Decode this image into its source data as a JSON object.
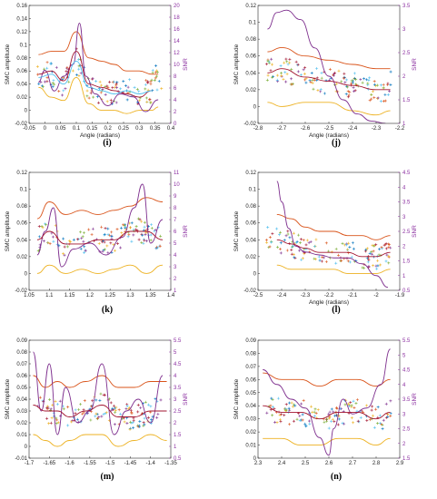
{
  "chart_data": [
    {
      "id": "i",
      "type": "scatter",
      "caption": "(i)",
      "xlabel": "Angle (radians)",
      "ylabel": "SMC amplitude",
      "y2label": "SNR",
      "xlim": [
        -0.05,
        0.4
      ],
      "ylim": [
        -0.02,
        0.16
      ],
      "y2lim": [
        0,
        20
      ],
      "xticks": [
        "-0.05",
        "0",
        "0.05",
        "0.1",
        "0.15",
        "0.2",
        "0.25",
        "0.3",
        "0.35",
        "0.4"
      ],
      "xtick_values": [
        -0.05,
        0,
        0.05,
        0.1,
        0.15,
        0.2,
        0.25,
        0.3,
        0.35,
        0.4
      ],
      "yticks": [
        "-0.02",
        "0",
        "0.02",
        "0.04",
        "0.06",
        "0.08",
        "0.1",
        "0.12",
        "0.14",
        "0.16"
      ],
      "ytick_values": [
        -0.02,
        0,
        0.02,
        0.04,
        0.06,
        0.08,
        0.1,
        0.12,
        0.14,
        0.16
      ],
      "y2ticks": [
        "0",
        "2",
        "4",
        "6",
        "8",
        "10",
        "12",
        "14",
        "16",
        "18",
        "20"
      ],
      "y2tick_values": [
        0,
        2,
        4,
        6,
        8,
        10,
        12,
        14,
        16,
        18,
        20
      ],
      "series": [
        {
          "color": "#d95319",
          "x": [
            -0.02,
            0.02,
            0.06,
            0.1,
            0.14,
            0.18,
            0.22,
            0.26,
            0.3,
            0.34,
            0.36
          ],
          "y": [
            0.085,
            0.09,
            0.09,
            0.12,
            0.08,
            0.075,
            0.07,
            0.06,
            0.06,
            0.055,
            0.055
          ]
        },
        {
          "color": "#edb120",
          "x": [
            -0.02,
            0.02,
            0.06,
            0.1,
            0.14,
            0.18,
            0.22,
            0.26,
            0.3,
            0.34,
            0.36
          ],
          "y": [
            0.035,
            0.02,
            0.015,
            0.05,
            0.01,
            0.0,
            0.0,
            -0.005,
            0.0,
            0.0,
            0.005
          ]
        },
        {
          "color": "#7e2f8e",
          "axis": "y2",
          "x": [
            -0.02,
            0.0,
            0.03,
            0.06,
            0.09,
            0.11,
            0.13,
            0.16,
            0.2,
            0.24,
            0.28,
            0.32,
            0.36
          ],
          "y": [
            7,
            9,
            5.5,
            8,
            10,
            17,
            8,
            5,
            3,
            5,
            4.5,
            2,
            4
          ]
        },
        {
          "color": "#a2142f",
          "x": [
            -0.02,
            0.02,
            0.06,
            0.1,
            0.14,
            0.18,
            0.22,
            0.26,
            0.3,
            0.34
          ],
          "y": [
            0.055,
            0.06,
            0.045,
            0.09,
            0.04,
            0.035,
            0.03,
            0.025,
            0.02,
            0.03
          ]
        },
        {
          "color": "#4dbeee",
          "x": [
            -0.02,
            0.02,
            0.06,
            0.1,
            0.14,
            0.18,
            0.22,
            0.26,
            0.3,
            0.34
          ],
          "y": [
            0.05,
            0.055,
            0.04,
            0.075,
            0.035,
            0.03,
            0.025,
            0.03,
            0.025,
            0.03
          ]
        }
      ]
    },
    {
      "id": "j",
      "type": "scatter",
      "caption": "(j)",
      "xlabel": "Angle (radians)",
      "ylabel": "SMC amplitude",
      "y2label": "SNR",
      "xlim": [
        -2.8,
        -2.2
      ],
      "ylim": [
        -0.02,
        0.12
      ],
      "y2lim": [
        1,
        3.5
      ],
      "xticks": [
        "-2.8",
        "-2.7",
        "-2.6",
        "-2.5",
        "-2.4",
        "-2.3",
        "-2.2"
      ],
      "xtick_values": [
        -2.8,
        -2.7,
        -2.6,
        -2.5,
        -2.4,
        -2.3,
        -2.2
      ],
      "yticks": [
        "-0.02",
        "0",
        "0.02",
        "0.04",
        "0.06",
        "0.08",
        "0.1",
        "0.12"
      ],
      "ytick_values": [
        -0.02,
        0,
        0.02,
        0.04,
        0.06,
        0.08,
        0.1,
        0.12
      ],
      "y2ticks": [
        "1",
        "1.5",
        "2",
        "2.5",
        "3",
        "3.5"
      ],
      "y2tick_values": [
        1,
        1.5,
        2,
        2.5,
        3,
        3.5
      ],
      "series": [
        {
          "color": "#d95319",
          "x": [
            -2.76,
            -2.7,
            -2.6,
            -2.5,
            -2.4,
            -2.3,
            -2.24
          ],
          "y": [
            0.065,
            0.07,
            0.06,
            0.055,
            0.05,
            0.045,
            0.045
          ]
        },
        {
          "color": "#edb120",
          "x": [
            -2.76,
            -2.7,
            -2.6,
            -2.5,
            -2.4,
            -2.3,
            -2.24
          ],
          "y": [
            0.005,
            0.0,
            0.005,
            0.005,
            -0.005,
            -0.01,
            -0.005
          ]
        },
        {
          "color": "#7e2f8e",
          "axis": "y2",
          "x": [
            -2.76,
            -2.72,
            -2.68,
            -2.62,
            -2.56,
            -2.5,
            -2.44,
            -2.38,
            -2.32,
            -2.26
          ],
          "y": [
            3.0,
            3.35,
            3.4,
            3.2,
            2.6,
            2.0,
            1.5,
            1.2,
            1.05,
            1.0
          ]
        },
        {
          "color": "#a2142f",
          "x": [
            -2.76,
            -2.7,
            -2.6,
            -2.5,
            -2.4,
            -2.3,
            -2.24
          ],
          "y": [
            0.04,
            0.045,
            0.035,
            0.03,
            0.025,
            0.02,
            0.02
          ]
        }
      ]
    },
    {
      "id": "k",
      "type": "scatter",
      "caption": "(k)",
      "xlabel": "",
      "ylabel": "SMC amplitude",
      "y2label": "SNR",
      "xlim": [
        1.05,
        1.4
      ],
      "ylim": [
        -0.02,
        0.12
      ],
      "y2lim": [
        1,
        11
      ],
      "xticks": [
        "1.05",
        "1.1",
        "1.15",
        "1.2",
        "1.25",
        "1.3",
        "1.35",
        "1.4"
      ],
      "xtick_values": [
        1.05,
        1.1,
        1.15,
        1.2,
        1.25,
        1.3,
        1.35,
        1.4
      ],
      "yticks": [
        "-0.02",
        "0",
        "0.02",
        "0.04",
        "0.06",
        "0.08",
        "0.1",
        "0.12"
      ],
      "ytick_values": [
        -0.02,
        0,
        0.02,
        0.04,
        0.06,
        0.08,
        0.1,
        0.12
      ],
      "y2ticks": [
        "1",
        "2",
        "3",
        "4",
        "5",
        "6",
        "7",
        "8",
        "9",
        "10",
        "11"
      ],
      "y2tick_values": [
        1,
        2,
        3,
        4,
        5,
        6,
        7,
        8,
        9,
        10,
        11
      ],
      "series": [
        {
          "color": "#d95319",
          "x": [
            1.07,
            1.1,
            1.14,
            1.18,
            1.22,
            1.26,
            1.3,
            1.34,
            1.38
          ],
          "y": [
            0.065,
            0.085,
            0.07,
            0.075,
            0.07,
            0.075,
            0.08,
            0.09,
            0.085
          ]
        },
        {
          "color": "#edb120",
          "x": [
            1.07,
            1.1,
            1.14,
            1.18,
            1.22,
            1.26,
            1.3,
            1.34,
            1.38
          ],
          "y": [
            0.0,
            0.01,
            0.0,
            0.005,
            0.0,
            0.005,
            0.01,
            0.0,
            0.01
          ]
        },
        {
          "color": "#7e2f8e",
          "axis": "y2",
          "x": [
            1.07,
            1.09,
            1.11,
            1.13,
            1.16,
            1.2,
            1.24,
            1.28,
            1.31,
            1.33,
            1.35,
            1.38
          ],
          "y": [
            4,
            6,
            8,
            3,
            4.5,
            5,
            4,
            5.5,
            8,
            10,
            5,
            7
          ]
        },
        {
          "color": "#a2142f",
          "x": [
            1.07,
            1.1,
            1.14,
            1.18,
            1.22,
            1.26,
            1.3,
            1.34,
            1.38
          ],
          "y": [
            0.04,
            0.05,
            0.035,
            0.035,
            0.04,
            0.04,
            0.05,
            0.05,
            0.04
          ]
        }
      ]
    },
    {
      "id": "l",
      "type": "scatter",
      "caption": "(l)",
      "xlabel": "Angle (radians)",
      "ylabel": "SMC amplitude",
      "y2label": "SNR",
      "xlim": [
        -2.5,
        -1.9
      ],
      "ylim": [
        -0.02,
        0.12
      ],
      "y2lim": [
        0.5,
        4.5
      ],
      "xticks": [
        "-2.5",
        "-2.4",
        "-2.3",
        "-2.2",
        "-2.1",
        "-2",
        "-1.9"
      ],
      "xtick_values": [
        -2.5,
        -2.4,
        -2.3,
        -2.2,
        -2.1,
        -2,
        -1.9
      ],
      "yticks": [
        "-0.02",
        "0",
        "0.02",
        "0.04",
        "0.06",
        "0.08",
        "0.1",
        "0.12"
      ],
      "ytick_values": [
        -0.02,
        0,
        0.02,
        0.04,
        0.06,
        0.08,
        0.1,
        0.12
      ],
      "y2ticks": [
        "0.5",
        "1",
        "1.5",
        "2",
        "2.5",
        "3",
        "3.5",
        "4",
        "4.5"
      ],
      "y2tick_values": [
        0.5,
        1,
        1.5,
        2,
        2.5,
        3,
        3.5,
        4,
        4.5
      ],
      "series": [
        {
          "color": "#d95319",
          "x": [
            -2.42,
            -2.36,
            -2.3,
            -2.24,
            -2.18,
            -2.12,
            -2.06,
            -2.0,
            -1.94
          ],
          "y": [
            0.07,
            0.065,
            0.055,
            0.05,
            0.05,
            0.045,
            0.045,
            0.04,
            0.045
          ]
        },
        {
          "color": "#edb120",
          "x": [
            -2.42,
            -2.36,
            -2.3,
            -2.24,
            -2.18,
            -2.12,
            -2.06,
            -2.0,
            -1.94
          ],
          "y": [
            0.01,
            0.005,
            0.005,
            0.005,
            0.005,
            0.0,
            0.0,
            0.0,
            0.005
          ]
        },
        {
          "color": "#7e2f8e",
          "axis": "y2",
          "x": [
            -2.42,
            -2.4,
            -2.37,
            -2.34,
            -2.3,
            -2.24,
            -2.18,
            -2.12,
            -2.06,
            -2.0,
            -1.95
          ],
          "y": [
            4.2,
            3.5,
            2.6,
            2.0,
            1.8,
            1.7,
            1.6,
            1.6,
            1.4,
            1.0,
            0.6
          ]
        },
        {
          "color": "#a2142f",
          "x": [
            -2.42,
            -2.36,
            -2.3,
            -2.24,
            -2.18,
            -2.12,
            -2.06,
            -2.0,
            -1.94
          ],
          "y": [
            0.04,
            0.035,
            0.03,
            0.025,
            0.025,
            0.025,
            0.02,
            0.02,
            0.025
          ]
        }
      ]
    },
    {
      "id": "m",
      "type": "scatter",
      "caption": "(m)",
      "xlabel": "",
      "ylabel": "SMC amplitude",
      "y2label": "SNR",
      "xlim": [
        -1.7,
        -1.35
      ],
      "ylim": [
        -0.01,
        0.09
      ],
      "y2lim": [
        0.5,
        5.5
      ],
      "xticks": [
        "-1.7",
        "-1.65",
        "-1.6",
        "-1.55",
        "-1.5",
        "-1.45",
        "-1.4",
        "-1.35"
      ],
      "xtick_values": [
        -1.7,
        -1.65,
        -1.6,
        -1.55,
        -1.5,
        -1.45,
        -1.4,
        -1.35
      ],
      "yticks": [
        "-0.01",
        "0",
        "0.01",
        "0.02",
        "0.03",
        "0.04",
        "0.05",
        "0.06",
        "0.07",
        "0.08",
        "0.09"
      ],
      "ytick_values": [
        -0.01,
        0,
        0.01,
        0.02,
        0.03,
        0.04,
        0.05,
        0.06,
        0.07,
        0.08,
        0.09
      ],
      "y2ticks": [
        "0.5",
        "1",
        "1.5",
        "2",
        "2.5",
        "3",
        "3.5",
        "4",
        "4.5",
        "5",
        "5.5"
      ],
      "y2tick_values": [
        0.5,
        1,
        1.5,
        2,
        2.5,
        3,
        3.5,
        4,
        4.5,
        5,
        5.5
      ],
      "series": [
        {
          "color": "#d95319",
          "x": [
            -1.69,
            -1.66,
            -1.63,
            -1.6,
            -1.56,
            -1.52,
            -1.48,
            -1.44,
            -1.4,
            -1.36
          ],
          "y": [
            0.06,
            0.05,
            0.055,
            0.05,
            0.055,
            0.06,
            0.05,
            0.05,
            0.055,
            0.055
          ]
        },
        {
          "color": "#edb120",
          "x": [
            -1.69,
            -1.66,
            -1.63,
            -1.6,
            -1.56,
            -1.52,
            -1.48,
            -1.44,
            -1.4,
            -1.36
          ],
          "y": [
            0.01,
            0.005,
            0.0,
            0.005,
            0.01,
            0.01,
            0.0,
            0.005,
            0.01,
            0.005
          ]
        },
        {
          "color": "#7e2f8e",
          "axis": "y2",
          "x": [
            -1.69,
            -1.67,
            -1.65,
            -1.63,
            -1.61,
            -1.58,
            -1.55,
            -1.52,
            -1.49,
            -1.46,
            -1.43,
            -1.4,
            -1.37
          ],
          "y": [
            5.0,
            2.5,
            4.5,
            1.5,
            3.5,
            2.0,
            2.5,
            4.5,
            1.5,
            2.5,
            3.0,
            2.0,
            4.0
          ]
        },
        {
          "color": "#a2142f",
          "x": [
            -1.69,
            -1.66,
            -1.63,
            -1.6,
            -1.56,
            -1.52,
            -1.48,
            -1.44,
            -1.4,
            -1.36
          ],
          "y": [
            0.035,
            0.03,
            0.03,
            0.025,
            0.03,
            0.035,
            0.025,
            0.025,
            0.03,
            0.03
          ]
        }
      ]
    },
    {
      "id": "n",
      "type": "scatter",
      "caption": "(n)",
      "xlabel": "",
      "ylabel": "SMC amplitude",
      "y2label": "SNR",
      "xlim": [
        2.3,
        2.9
      ],
      "ylim": [
        0.0,
        0.09
      ],
      "y2lim": [
        1.5,
        5.5
      ],
      "xticks": [
        "2.3",
        "2.4",
        "2.5",
        "2.6",
        "2.7",
        "2.8",
        "2.9"
      ],
      "xtick_values": [
        2.3,
        2.4,
        2.5,
        2.6,
        2.7,
        2.8,
        2.9
      ],
      "yticks": [
        "0",
        "0.01",
        "0.02",
        "0.03",
        "0.04",
        "0.05",
        "0.06",
        "0.07",
        "0.08",
        "0.09"
      ],
      "ytick_values": [
        0,
        0.01,
        0.02,
        0.03,
        0.04,
        0.05,
        0.06,
        0.07,
        0.08,
        0.09
      ],
      "y2ticks": [
        "1.5",
        "2",
        "2.5",
        "3",
        "3.5",
        "4",
        "4.5",
        "5",
        "5.5"
      ],
      "y2tick_values": [
        1.5,
        2,
        2.5,
        3,
        3.5,
        4,
        4.5,
        5,
        5.5
      ],
      "series": [
        {
          "color": "#d95319",
          "x": [
            2.32,
            2.4,
            2.48,
            2.56,
            2.64,
            2.72,
            2.8,
            2.86
          ],
          "y": [
            0.065,
            0.06,
            0.06,
            0.055,
            0.06,
            0.06,
            0.055,
            0.06
          ]
        },
        {
          "color": "#edb120",
          "x": [
            2.32,
            2.4,
            2.48,
            2.56,
            2.64,
            2.72,
            2.8,
            2.86
          ],
          "y": [
            0.015,
            0.015,
            0.01,
            0.01,
            0.015,
            0.015,
            0.01,
            0.015
          ]
        },
        {
          "color": "#7e2f8e",
          "axis": "y2",
          "x": [
            2.32,
            2.38,
            2.44,
            2.5,
            2.56,
            2.6,
            2.62,
            2.66,
            2.7,
            2.76,
            2.82,
            2.86
          ],
          "y": [
            4.5,
            4.0,
            3.5,
            3.2,
            2.2,
            1.6,
            2.5,
            3.5,
            3.0,
            3.2,
            4.0,
            5.2
          ]
        },
        {
          "color": "#a2142f",
          "x": [
            2.32,
            2.4,
            2.48,
            2.56,
            2.64,
            2.72,
            2.8,
            2.86
          ],
          "y": [
            0.04,
            0.035,
            0.035,
            0.03,
            0.035,
            0.035,
            0.03,
            0.035
          ]
        }
      ]
    }
  ]
}
